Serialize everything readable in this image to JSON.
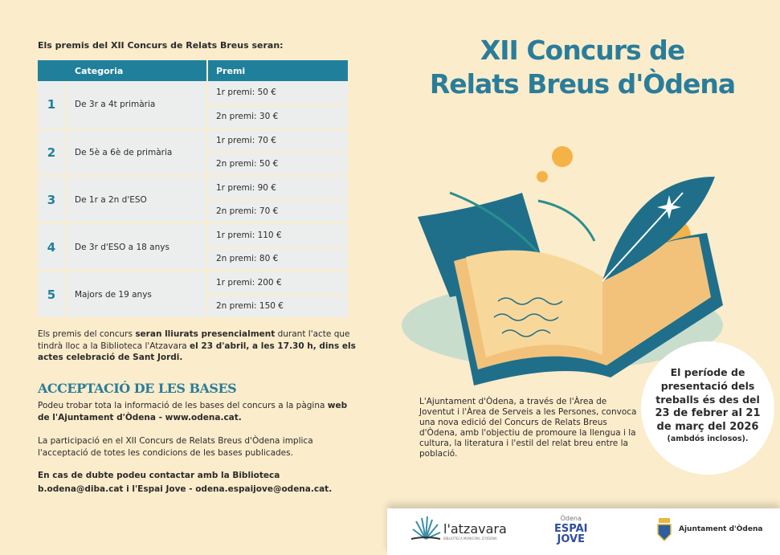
{
  "intro": "Els premis del XII Concurs de Relats Breus seran:",
  "table": {
    "headers": [
      "Categoria",
      "Premi"
    ],
    "rows": [
      {
        "num": "1",
        "cat": "De 3r a 4t primària",
        "p1": "1r premi:  50 €",
        "p2": "2n premi: 30 €"
      },
      {
        "num": "2",
        "cat": "De 5è a 6è de primària",
        "p1": "1r premi:  70 €",
        "p2": "2n premi: 50 €"
      },
      {
        "num": "3",
        "cat": "De 1r a 2n d'ESO",
        "p1": "1r premi:  90 €",
        "p2": "2n premi: 70 €"
      },
      {
        "num": "4",
        "cat": "De 3r d'ESO a 18 anys",
        "p1": "1r premi:  110 €",
        "p2": "2n premi: 80 €"
      },
      {
        "num": "5",
        "cat": "Majors de 19 anys",
        "p1": "1r premi:  200 €",
        "p2": "2n premi: 150 €"
      }
    ]
  },
  "awards": {
    "a": "Els premis del concurs ",
    "b": "seran lliurats presencialment",
    "c": " durant l'acte que tindrà lloc a la Biblioteca l'Atzavara ",
    "d": "el 23 d'abril, a les 17.30 h, dins els actes celebració de Sant Jordi."
  },
  "bases": {
    "title": "ACCEPTACIÓ DE LES BASES",
    "p1a": "Podeu trobar tota la informació de les bases del concurs a la pàgina ",
    "p1b": "web de l'Ajuntament d'Òdena - www.odena.cat.",
    "p2": "La participació en el XII Concurs de Relats Breus d'Òdena implica l'acceptació de totes les condicions de les bases publicades.",
    "p3": "En cas de dubte podeu contactar amb la Biblioteca b.odena@diba.cat i l'Espai Jove - odena.espaijove@odena.cat."
  },
  "title": {
    "l1": "XII Concurs de",
    "l2": "Relats Breus d'Òdena"
  },
  "description": "L'Ajuntament d'Òdena, a través de l'Àrea de Joventut i l'Àrea de Serveis a les Persones, convoca una nova edició del Concurs de Relats Breus d'Òdena, amb l'objectiu de promoure la llengua i la cultura, la literatura i l'estil del relat breu entre la població.",
  "period": {
    "l1": "El període de presentació dels treballs és des del",
    "l2": "23 de febrer al 21 de març del 2026",
    "l3": "(ambdós inclosos)."
  },
  "footer": {
    "atzavara": "l'atzavara",
    "atzavara_sub": "BIBLIOTECA MUNICIPAL D'ÒDENA",
    "espai_top": "Òdena",
    "espai_1": "ESPAI",
    "espai_2": "JOVE",
    "ajuntament": "Ajuntament d'Òdena"
  },
  "colors": {
    "teal": "#20809c",
    "background": "#fbeccb",
    "orange": "#f5b347"
  }
}
